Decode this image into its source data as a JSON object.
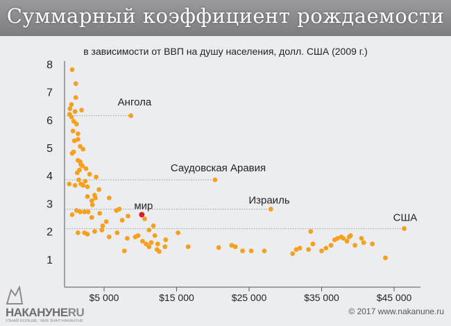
{
  "header": {
    "title": "Суммарный коэффициент рождаемости"
  },
  "footer": {
    "logo_main": "НАКАНУНЕ",
    "logo_domain": "RU",
    "slogan": "УЗНАЙ БОЛЬШЕ, ЧЕМ ЗНАЛ НАКАНУНЕ",
    "copyright": "© 2017 www.nakanune.ru"
  },
  "colors": {
    "point": "#f5a01e",
    "highlight": "#d81e1e",
    "axis": "#555555",
    "leader": "#9a9a9a",
    "text": "#222222"
  },
  "chart_data": {
    "type": "scatter",
    "title": "Суммарный коэффициент рождаемости",
    "subtitle": "в зависимости от ВВП на душу населения, долл. США (2009 г.)",
    "xlabel": "",
    "ylabel": "",
    "xlim": [
      0,
      48000
    ],
    "ylim": [
      0,
      8
    ],
    "x_ticks": [
      {
        "value": 5000,
        "label": "$5 000"
      },
      {
        "value": 15000,
        "label": "$15 000"
      },
      {
        "value": 25000,
        "label": "$25 000"
      },
      {
        "value": 35000,
        "label": "$35 000"
      },
      {
        "value": 45000,
        "label": "$45 000"
      }
    ],
    "y_ticks": [
      {
        "value": 1,
        "label": "1"
      },
      {
        "value": 2,
        "label": "2"
      },
      {
        "value": 3,
        "label": "3"
      },
      {
        "value": 4,
        "label": "4"
      },
      {
        "value": 5,
        "label": "5"
      },
      {
        "value": 6,
        "label": "6"
      },
      {
        "value": 7,
        "label": "7"
      },
      {
        "value": 8,
        "label": "8"
      }
    ],
    "annotations": [
      {
        "label": "Ангола",
        "x": 8700,
        "y": 6.15
      },
      {
        "label": "Саудовская Аравия",
        "x": 20300,
        "y": 3.85
      },
      {
        "label": "Израиль",
        "x": 28000,
        "y": 2.8
      },
      {
        "label": "США",
        "x": 46400,
        "y": 2.1
      }
    ],
    "highlight": {
      "label": "мир",
      "x": 10200,
      "y": 2.6
    },
    "points": [
      [
        600,
        7.8
      ],
      [
        1100,
        7.3
      ],
      [
        1100,
        6.8
      ],
      [
        500,
        6.55
      ],
      [
        300,
        6.4
      ],
      [
        1900,
        6.35
      ],
      [
        1000,
        6.3
      ],
      [
        250,
        6.2
      ],
      [
        500,
        6.1
      ],
      [
        800,
        5.95
      ],
      [
        1200,
        5.85
      ],
      [
        700,
        5.6
      ],
      [
        1400,
        5.5
      ],
      [
        1400,
        5.3
      ],
      [
        900,
        5.25
      ],
      [
        1700,
        5.05
      ],
      [
        2100,
        4.95
      ],
      [
        800,
        4.85
      ],
      [
        600,
        4.8
      ],
      [
        1400,
        4.55
      ],
      [
        1700,
        4.5
      ],
      [
        1800,
        4.4
      ],
      [
        2000,
        4.35
      ],
      [
        2500,
        4.25
      ],
      [
        1600,
        4.2
      ],
      [
        1300,
        4.1
      ],
      [
        3000,
        4.05
      ],
      [
        3900,
        3.95
      ],
      [
        1500,
        3.85
      ],
      [
        2400,
        3.8
      ],
      [
        1800,
        3.7
      ],
      [
        200,
        3.7
      ],
      [
        2100,
        3.65
      ],
      [
        1000,
        3.65
      ],
      [
        2700,
        3.6
      ],
      [
        4300,
        3.5
      ],
      [
        3700,
        3.3
      ],
      [
        2700,
        3.25
      ],
      [
        3800,
        3.2
      ],
      [
        5700,
        3.2
      ],
      [
        3300,
        3.1
      ],
      [
        3400,
        2.95
      ],
      [
        1200,
        2.75
      ],
      [
        1700,
        2.7
      ],
      [
        2300,
        2.7
      ],
      [
        2800,
        2.7
      ],
      [
        6700,
        2.75
      ],
      [
        7100,
        2.8
      ],
      [
        4400,
        2.65
      ],
      [
        600,
        2.6
      ],
      [
        3300,
        2.5
      ],
      [
        8300,
        2.55
      ],
      [
        10600,
        2.45
      ],
      [
        7500,
        2.4
      ],
      [
        5300,
        2.35
      ],
      [
        4800,
        2.2
      ],
      [
        11800,
        2.2
      ],
      [
        4700,
        2.05
      ],
      [
        11200,
        2.05
      ],
      [
        3700,
        2.0
      ],
      [
        6800,
        1.95
      ],
      [
        1400,
        1.95
      ],
      [
        2300,
        1.95
      ],
      [
        2700,
        1.9
      ],
      [
        15200,
        1.95
      ],
      [
        9700,
        1.85
      ],
      [
        12000,
        1.85
      ],
      [
        9300,
        1.8
      ],
      [
        13500,
        1.7
      ],
      [
        8200,
        1.75
      ],
      [
        5700,
        1.8
      ],
      [
        10300,
        1.65
      ],
      [
        11500,
        1.6
      ],
      [
        10800,
        1.55
      ],
      [
        12400,
        1.55
      ],
      [
        11200,
        1.45
      ],
      [
        13400,
        1.45
      ],
      [
        16600,
        1.45
      ],
      [
        20800,
        1.42
      ],
      [
        23100,
        1.45
      ],
      [
        22600,
        1.5
      ],
      [
        24100,
        1.3
      ],
      [
        27100,
        1.3
      ],
      [
        25300,
        1.3
      ],
      [
        12300,
        1.35
      ],
      [
        12600,
        1.28
      ],
      [
        7800,
        1.3
      ],
      [
        31000,
        1.2
      ],
      [
        31500,
        1.35
      ],
      [
        32000,
        1.4
      ],
      [
        33800,
        1.55
      ],
      [
        33200,
        1.35
      ],
      [
        33500,
        2.0
      ],
      [
        35000,
        1.3
      ],
      [
        35600,
        1.4
      ],
      [
        36300,
        1.5
      ],
      [
        37200,
        1.75
      ],
      [
        37700,
        1.8
      ],
      [
        38500,
        1.65
      ],
      [
        39000,
        1.85
      ],
      [
        40500,
        1.75
      ],
      [
        40800,
        1.6
      ],
      [
        42000,
        1.55
      ],
      [
        43800,
        1.05
      ],
      [
        36800,
        1.7
      ],
      [
        38000,
        1.75
      ],
      [
        38800,
        1.8
      ],
      [
        39600,
        1.5
      ]
    ]
  }
}
